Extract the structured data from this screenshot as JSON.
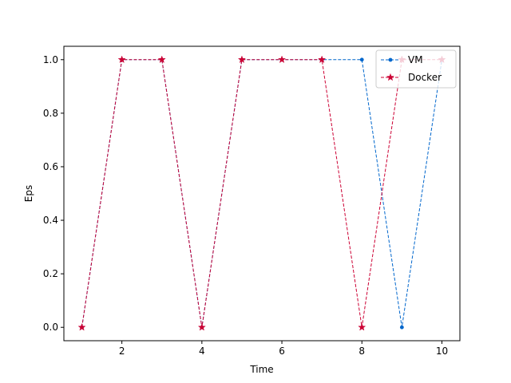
{
  "chart_data": {
    "type": "line",
    "title": "",
    "xlabel": "Time",
    "ylabel": "Eps",
    "xlim": [
      0.55,
      10.45
    ],
    "ylim": [
      -0.05,
      1.05
    ],
    "xticks": [
      2,
      4,
      6,
      8,
      10
    ],
    "yticks": [
      0.0,
      0.2,
      0.4,
      0.6,
      0.8,
      1.0
    ],
    "ytick_labels": [
      "0.0",
      "0.2",
      "0.4",
      "0.6",
      "0.8",
      "1.0"
    ],
    "grid": false,
    "legend_position": "top-right",
    "x": [
      1,
      2,
      3,
      4,
      5,
      6,
      7,
      8,
      9,
      10
    ],
    "series": [
      {
        "name": "VM",
        "color": "#0066cc",
        "linestyle": "dashed",
        "marker": "circle",
        "values": [
          0,
          1,
          1,
          0,
          1,
          1,
          1,
          1,
          0,
          1
        ]
      },
      {
        "name": "Docker",
        "color": "#cc0033",
        "linestyle": "dashed",
        "marker": "star",
        "values": [
          0,
          1,
          1,
          0,
          1,
          1,
          1,
          0,
          1,
          1
        ]
      }
    ]
  }
}
